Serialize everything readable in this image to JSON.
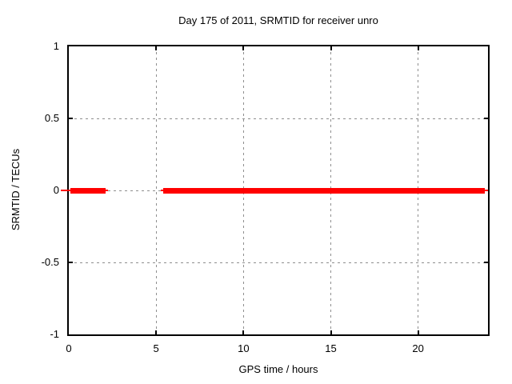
{
  "chart_data": {
    "type": "line",
    "title": "Day 175 of 2011, SRMTID for receiver unro",
    "xlabel": "GPS time / hours",
    "ylabel": "SRMTID / TECUs",
    "xlim": [
      0,
      24
    ],
    "ylim": [
      -1,
      1
    ],
    "xticks": {
      "values": [
        0,
        5,
        10,
        15,
        20
      ],
      "labels": [
        "0",
        "5",
        "10",
        "15",
        "20"
      ]
    },
    "yticks": {
      "values": [
        1,
        0.5,
        0,
        -0.5,
        -1
      ],
      "labels": [
        "1",
        "0.5",
        "0",
        "-0.5",
        "-1"
      ]
    },
    "grid": true,
    "grid_style": "dotted",
    "legend": "none",
    "series": [
      {
        "name": "SRMTID",
        "color": "#ff0000",
        "description": "near-constant zero value band with a data gap between about 2.1 and 5.4 hours",
        "segments": [
          {
            "x0": -0.46,
            "x1": 0.09,
            "y": 0,
            "weight": "thin"
          },
          {
            "x0": 0.09,
            "x1": 2.11,
            "y": 0,
            "weight": "thick"
          },
          {
            "x0": 2.11,
            "x1": 2.24,
            "y": 0,
            "weight": "thin"
          },
          {
            "x0": 5.27,
            "x1": 5.41,
            "y": 0,
            "weight": "thin"
          },
          {
            "x0": 5.41,
            "x1": 23.82,
            "y": 0,
            "weight": "thick"
          },
          {
            "x0": 23.82,
            "x1": 24.0,
            "y": 0,
            "weight": "thin"
          }
        ]
      }
    ],
    "colors": {
      "background": "#ffffff",
      "border": "#000000",
      "text": "#000000",
      "grid": "#8f8f8f",
      "line": "#ff0000"
    }
  }
}
